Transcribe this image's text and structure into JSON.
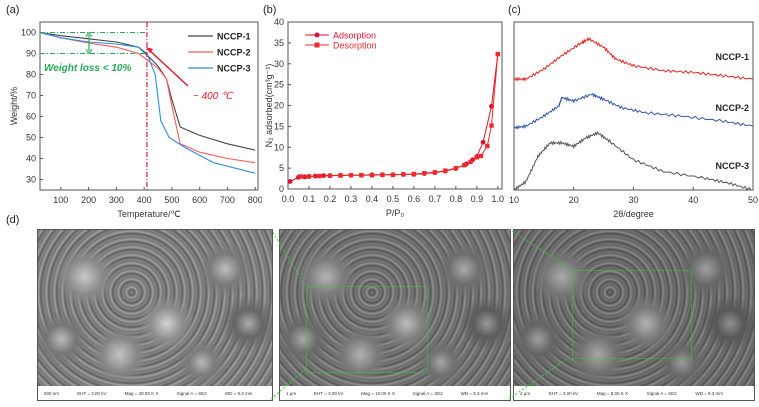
{
  "panel_labels": {
    "a": "(a)",
    "b": "(b)",
    "c": "(c)",
    "d": "(d)"
  },
  "colors": {
    "nccp1": "#444444",
    "nccp2": "#ff5a5a",
    "nccp3": "#2a8ee0",
    "red": "#e8192c",
    "green": "#22aa55",
    "xrd1": "#ee2222",
    "xrd2": "#3355aa",
    "xrd3": "#555555"
  },
  "chart_data": [
    {
      "type": "line",
      "panel": "(a)",
      "xlabel": "Temperature/℃",
      "ylabel": "Weight/%",
      "xlim": [
        25,
        810
      ],
      "ylim": [
        25,
        105
      ],
      "xticks": [
        100,
        200,
        300,
        400,
        500,
        600,
        700,
        800
      ],
      "yticks": [
        30,
        40,
        50,
        60,
        70,
        80,
        90,
        100
      ],
      "annotations": {
        "weight_loss": "Weight loss < 10%",
        "temp": "~ 400 ℃",
        "vline_x": 410,
        "hlines_y": [
          100,
          90
        ]
      },
      "series": [
        {
          "name": "NCCP-1",
          "x": [
            25,
            100,
            200,
            300,
            380,
            420,
            450,
            480,
            500,
            530,
            600,
            700,
            800
          ],
          "y": [
            100,
            98.5,
            97,
            95.5,
            93,
            88,
            84,
            78,
            68,
            55,
            51,
            47,
            44
          ]
        },
        {
          "name": "NCCP-2",
          "x": [
            25,
            100,
            200,
            300,
            380,
            420,
            450,
            480,
            500,
            530,
            600,
            700,
            800
          ],
          "y": [
            100,
            97.5,
            95,
            93,
            90,
            86,
            83,
            78,
            65,
            47,
            43,
            40,
            38
          ]
        },
        {
          "name": "NCCP-3",
          "x": [
            25,
            100,
            200,
            300,
            380,
            410,
            440,
            460,
            490,
            550,
            650,
            800
          ],
          "y": [
            100,
            97.5,
            95.5,
            94.5,
            93,
            90,
            80,
            58,
            50,
            45,
            38,
            33
          ]
        }
      ]
    },
    {
      "type": "line",
      "panel": "(b)",
      "xlabel": "P/P₀",
      "ylabel": "N₂ adsorbed(cm³g⁻¹)",
      "xlim": [
        0,
        1.02
      ],
      "ylim": [
        0,
        40
      ],
      "xticks": [
        0.0,
        0.1,
        0.2,
        0.3,
        0.4,
        0.5,
        0.6,
        0.7,
        0.8,
        0.9,
        1.0
      ],
      "yticks": [
        0,
        5,
        10,
        15,
        20,
        25,
        30,
        35,
        40
      ],
      "series": [
        {
          "name": "Adsorption",
          "marker": "circle",
          "x": [
            0.01,
            0.05,
            0.08,
            0.1,
            0.13,
            0.17,
            0.2,
            0.25,
            0.3,
            0.35,
            0.4,
            0.45,
            0.5,
            0.55,
            0.6,
            0.65,
            0.7,
            0.75,
            0.8,
            0.85,
            0.88,
            0.9,
            0.93,
            0.97,
            1.0
          ],
          "y": [
            1.8,
            2.8,
            2.9,
            3.0,
            3.1,
            3.2,
            3.2,
            3.3,
            3.3,
            3.3,
            3.4,
            3.4,
            3.4,
            3.5,
            3.5,
            3.7,
            3.9,
            4.3,
            4.9,
            6.0,
            7.0,
            7.8,
            11.2,
            19.8,
            32.3
          ]
        },
        {
          "name": "Desorption",
          "marker": "square",
          "x": [
            1.0,
            0.97,
            0.95,
            0.92,
            0.9,
            0.87,
            0.84,
            0.8,
            0.75,
            0.7,
            0.65,
            0.6,
            0.55,
            0.5,
            0.45,
            0.4,
            0.35,
            0.3,
            0.25,
            0.2,
            0.15,
            0.1,
            0.06
          ],
          "y": [
            32.3,
            15.2,
            10.3,
            7.9,
            7.6,
            6.5,
            5.7,
            5.0,
            4.4,
            4.0,
            3.8,
            3.6,
            3.5,
            3.4,
            3.4,
            3.3,
            3.3,
            3.3,
            3.2,
            3.2,
            3.1,
            3.0,
            3.0
          ]
        }
      ]
    },
    {
      "type": "line",
      "panel": "(c)",
      "xlabel": "2θ/degree",
      "ylabel": "",
      "xlim": [
        10,
        50
      ],
      "ylim": [
        0,
        100
      ],
      "xticks": [
        10,
        20,
        30,
        40,
        50
      ],
      "series": [
        {
          "name": "NCCP-1",
          "x": [
            10,
            12,
            15,
            18,
            21,
            22.5,
            25,
            27,
            30,
            35,
            40,
            45,
            50
          ],
          "y": [
            66,
            66,
            72,
            80,
            87,
            90,
            85,
            78,
            74,
            71,
            70,
            68,
            66
          ]
        },
        {
          "name": "NCCP-2",
          "x": [
            10,
            12,
            15,
            17.5,
            18,
            20,
            23,
            25,
            28,
            32,
            38,
            45,
            50
          ],
          "y": [
            37,
            38,
            44,
            50,
            55,
            53,
            57,
            54,
            49,
            46,
            44,
            41,
            38
          ]
        },
        {
          "name": "NCCP-3",
          "x": [
            10,
            12,
            14,
            16,
            18,
            20,
            22,
            24,
            26,
            30,
            35,
            42,
            46,
            50
          ],
          "y": [
            0,
            5,
            20,
            28,
            28,
            26,
            31,
            34,
            29,
            18,
            11,
            7,
            4,
            0
          ]
        }
      ]
    }
  ],
  "sem_images": [
    {
      "scale": "500 nm",
      "eht": "EHT = 3.00 kV",
      "mag": "Mag = 20.00 K X",
      "signal": "Signal A = SE2",
      "wd": "WD = 9.3 mm"
    },
    {
      "scale": "1 μm",
      "eht": "EHT = 3.00 kV",
      "mag": "Mag = 10.00 K X",
      "signal": "Signal A = SE2",
      "wd": "WD = 9.3 mm"
    },
    {
      "scale": "2 μm",
      "eht": "EHT = 3.00 kV",
      "mag": "Mag = 5.00 K X",
      "signal": "Signal A = SE2",
      "wd": "WD = 9.3 mm"
    }
  ]
}
